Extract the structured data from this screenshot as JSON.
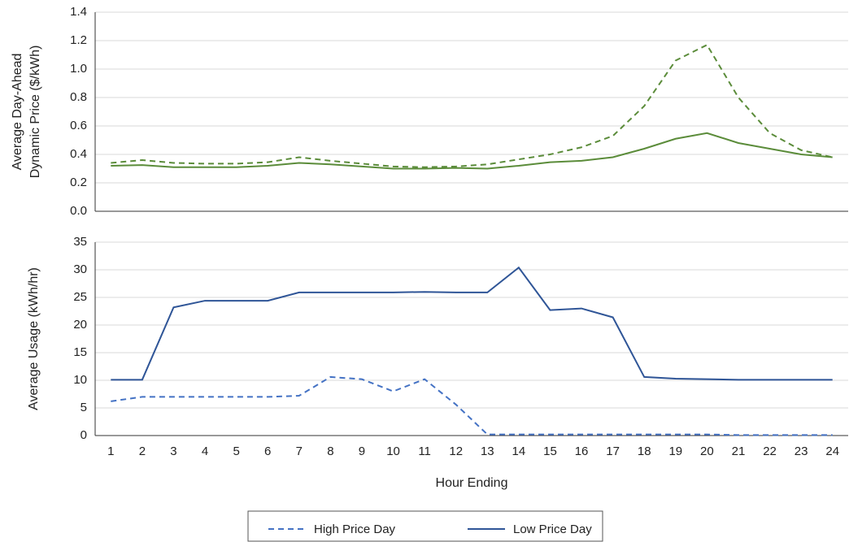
{
  "chart_data": [
    {
      "type": "line",
      "ylabel": [
        "Average Day-Ahead",
        "Dynamic Price ($/kWh)"
      ],
      "ylim": [
        0,
        1.4
      ],
      "yticks": [
        {
          "value": 0,
          "label": "0.0"
        },
        0.2,
        0.4,
        0.6,
        0.8,
        {
          "value": 1,
          "label": "1.0"
        },
        1.2,
        1.4
      ],
      "grid": true,
      "series": [
        {
          "color": "#5b8c3a",
          "dash": true,
          "values": [
            0.34,
            0.36,
            0.34,
            0.335,
            0.335,
            0.345,
            0.38,
            0.355,
            0.335,
            0.315,
            0.31,
            0.315,
            0.33,
            0.365,
            0.4,
            0.45,
            0.53,
            0.74,
            1.06,
            1.17,
            0.8,
            0.55,
            0.43,
            0.38
          ]
        },
        {
          "color": "#5b8c3a",
          "dash": false,
          "values": [
            0.32,
            0.325,
            0.31,
            0.31,
            0.31,
            0.32,
            0.34,
            0.33,
            0.315,
            0.3,
            0.3,
            0.305,
            0.3,
            0.32,
            0.345,
            0.355,
            0.38,
            0.44,
            0.51,
            0.55,
            0.48,
            0.44,
            0.4,
            0.38
          ]
        }
      ]
    },
    {
      "type": "line",
      "ylabel": [
        "Average Usage (kWh/hr)"
      ],
      "xlabel": "Hour Ending",
      "categories": [
        "1",
        "2",
        "3",
        "4",
        "5",
        "6",
        "7",
        "8",
        "9",
        "10",
        "11",
        "12",
        "13",
        "14",
        "15",
        "16",
        "17",
        "18",
        "19",
        "20",
        "21",
        "22",
        "23",
        "24"
      ],
      "ylim": [
        0,
        35
      ],
      "yticks": [
        0,
        5,
        10,
        15,
        20,
        25,
        30,
        35
      ],
      "grid": true,
      "series": [
        {
          "name": "High Price Day",
          "color": "#4472c4",
          "dash": true,
          "values": [
            6.2,
            7,
            7,
            7,
            7,
            7,
            7.2,
            10.6,
            10.2,
            8,
            10.2,
            5.6,
            0.2,
            0.2,
            0.2,
            0.2,
            0.2,
            0.2,
            0.2,
            0.2,
            0.1,
            0.1,
            0.1,
            0.1
          ]
        },
        {
          "name": "Low Price Day",
          "color": "#2f5597",
          "dash": false,
          "values": [
            10.1,
            10.1,
            23.2,
            24.4,
            24.4,
            24.4,
            25.9,
            25.9,
            25.9,
            25.9,
            26,
            25.9,
            25.9,
            30.4,
            22.7,
            23,
            21.4,
            10.6,
            10.3,
            10.2,
            10.1,
            10.1,
            10.1,
            10.1
          ]
        }
      ]
    }
  ]
}
